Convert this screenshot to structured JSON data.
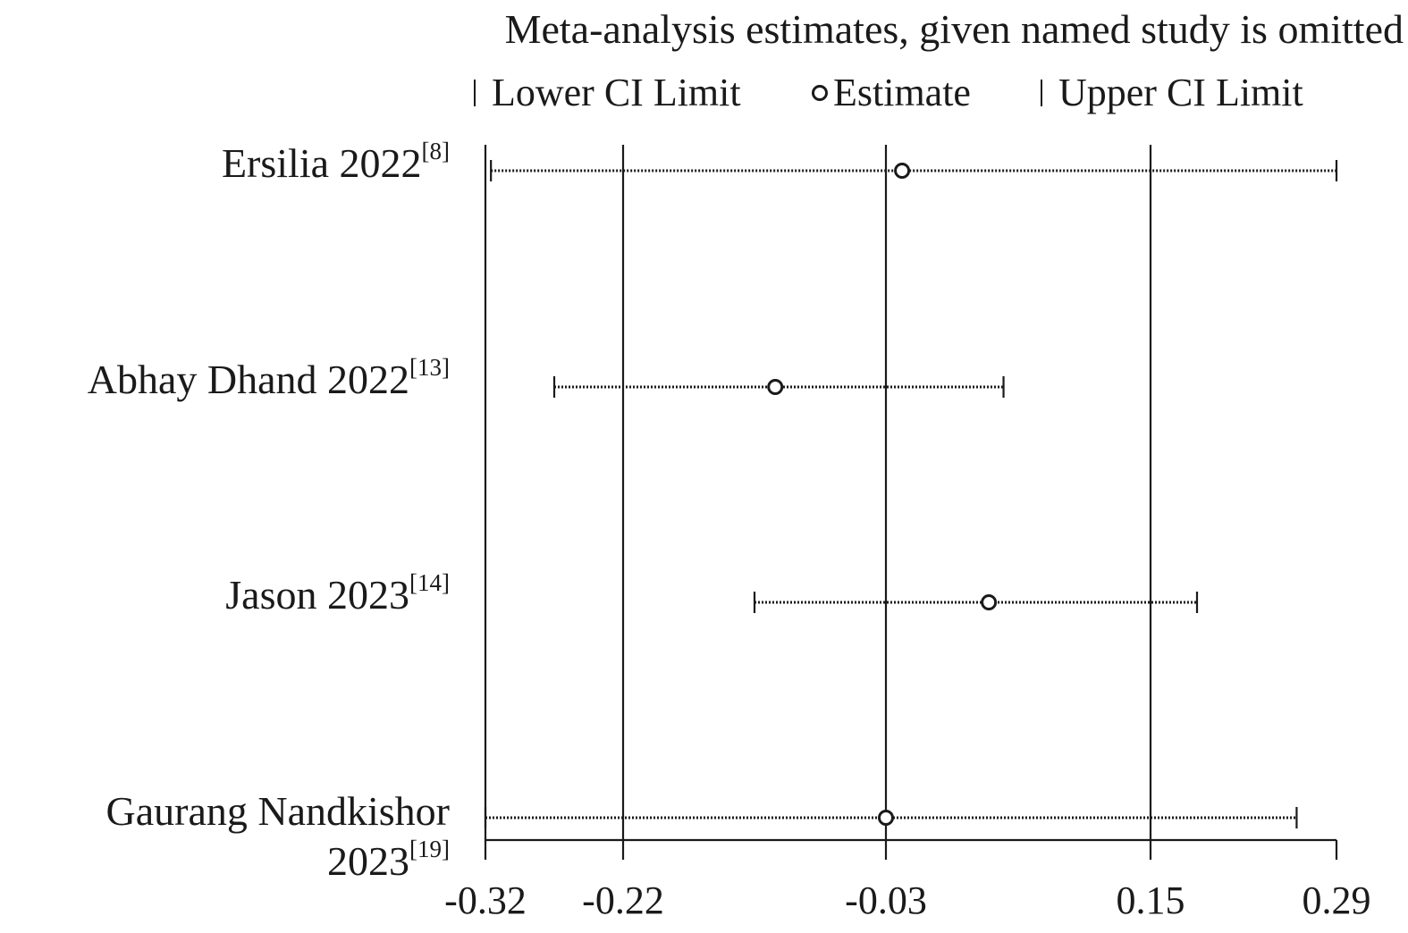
{
  "chart_data": {
    "type": "forest",
    "title": "Meta-analysis estimates, given named study is omitted",
    "legend": {
      "lower": "Lower CI Limit",
      "estimate": "Estimate",
      "upper": "Upper CI Limit"
    },
    "studies": [
      {
        "name": "Ersilia 2022",
        "ref": "[8]",
        "lower": -0.316,
        "estimate": -0.019,
        "upper": 0.29
      },
      {
        "name": "Abhay Dhand 2022",
        "ref": "[13]",
        "lower": -0.27,
        "estimate": -0.11,
        "upper": 0.05
      },
      {
        "name": "Jason 2023",
        "ref": "[14]",
        "lower": -0.125,
        "estimate": 0.04,
        "upper": 0.185
      },
      {
        "name": "Gaurang Nandkishor",
        "name_line2": "2023",
        "ref": "[19]",
        "lower": -0.32,
        "estimate": -0.03,
        "upper": 0.26
      }
    ],
    "x_ticks": [
      "-0.32",
      "-0.22",
      "-0.03",
      "0.15",
      "0.29"
    ],
    "x_tick_values": [
      -0.32,
      -0.22,
      -0.03,
      0.15,
      0.29
    ],
    "xlim": [
      -0.32,
      0.29
    ],
    "reference_lines": [
      -0.32,
      -0.22,
      -0.03,
      0.15
    ],
    "grid": false
  }
}
